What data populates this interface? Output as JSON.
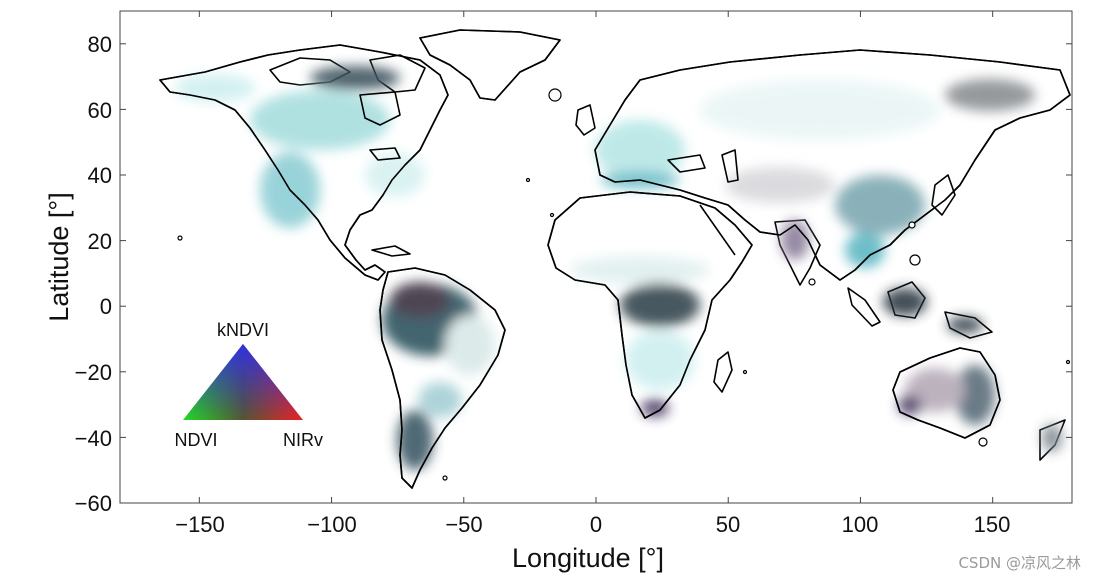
{
  "map": {
    "x_axis": {
      "label": "Longitude [°]",
      "range": [
        -180,
        180
      ],
      "ticks": [
        -150,
        -100,
        -50,
        0,
        50,
        100,
        150
      ],
      "tick_labels": [
        "−150",
        "−100",
        "−50",
        "0",
        "50",
        "100",
        "150"
      ]
    },
    "y_axis": {
      "label": "Latitude [°]",
      "range": [
        -60,
        90
      ],
      "ticks": [
        80,
        60,
        40,
        20,
        0,
        -20,
        -40,
        -60
      ],
      "tick_labels": [
        "80",
        "60",
        "40",
        "20",
        "0",
        "−20",
        "−40",
        "−60"
      ]
    },
    "legend": {
      "type": "ternary-color-triangle",
      "placement": "lower-left",
      "vertices": [
        {
          "name": "kNDVI",
          "color": "#2b2bff"
        },
        {
          "name": "NDVI",
          "color": "#22dd22"
        },
        {
          "name": "NIRv",
          "color": "#ee2222"
        }
      ]
    },
    "colors": {
      "land_background": "#ffffff",
      "coastline": "#000000",
      "vegetation_tones": [
        "#e6f4f4",
        "#a8dede",
        "#5fb8c4",
        "#3f6f78",
        "#2d3a44",
        "#4c3a66"
      ]
    }
  },
  "watermark": "CSDN @凉风之林"
}
